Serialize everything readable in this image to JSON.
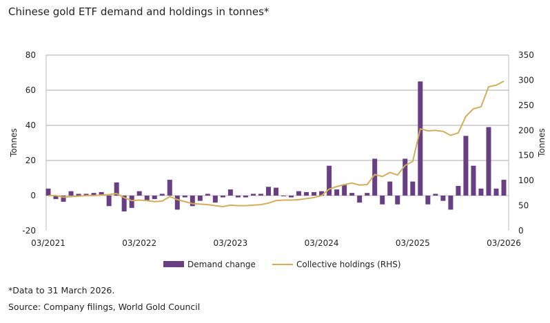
{
  "chart_data": {
    "type": "bar+line",
    "title": "Chinese gold ETF demand and holdings in tonnes*",
    "ylabel": "Tonnes",
    "y2label": "Tonnes",
    "ylim": [
      -20,
      80
    ],
    "y2lim": [
      0,
      350
    ],
    "yticks": [
      -20,
      0,
      20,
      40,
      60,
      80
    ],
    "y2ticks": [
      0,
      50,
      100,
      150,
      200,
      250,
      300,
      350
    ],
    "xtick_labels": [
      "03/2021",
      "03/2022",
      "03/2023",
      "03/2024",
      "03/2025",
      "03/2026"
    ],
    "grid": true,
    "legend": "bottom",
    "x_start": "03/2021",
    "x_end": "03/2026",
    "x_step": "month",
    "series": [
      {
        "name": "Demand change",
        "type": "bar",
        "color": "#673f82",
        "values": [
          4,
          -2,
          -3.5,
          2.5,
          1,
          1,
          1.5,
          2,
          -6,
          7.5,
          -9,
          -7,
          2.5,
          -3,
          -2,
          1,
          9,
          -8,
          -1,
          -6,
          -3,
          1,
          -4,
          -1,
          3.5,
          -1,
          -1,
          1,
          1,
          5,
          4.5,
          0,
          -1,
          2.5,
          2,
          2,
          2.5,
          17,
          3.5,
          6,
          1.5,
          -4,
          1.5,
          21,
          -5,
          8,
          -5,
          21,
          8,
          65,
          -5,
          1,
          -3,
          -8,
          5.5,
          34,
          17,
          4,
          39,
          4,
          9
        ]
      },
      {
        "name": "Collective holdings (RHS)",
        "type": "line",
        "color": "#d4ad5a",
        "values": [
          70,
          70,
          67,
          68,
          69,
          70,
          70,
          71,
          72,
          74,
          66,
          60,
          61,
          60,
          58,
          59,
          68,
          62,
          58,
          54,
          53,
          52,
          50,
          48,
          51,
          50,
          50,
          51,
          52,
          55,
          60,
          61,
          61,
          62,
          64,
          66,
          70,
          83,
          88,
          92,
          95,
          91,
          92,
          112,
          108,
          116,
          111,
          130,
          138,
          203,
          199,
          200,
          198,
          190,
          195,
          228,
          243,
          247,
          287,
          290,
          298
        ]
      }
    ]
  },
  "footnote": "*Data to 31 March 2026.",
  "source": "Source: Company filings, World Gold Council"
}
